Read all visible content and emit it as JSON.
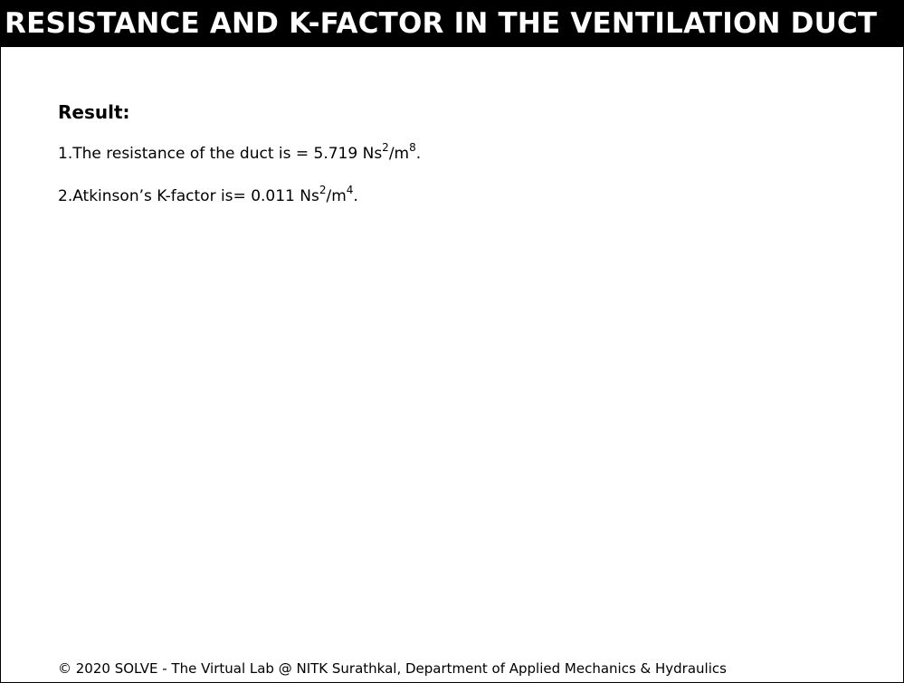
{
  "header": {
    "title": "RESISTANCE AND K-FACTOR IN THE VENTILATION DUCT"
  },
  "result": {
    "heading": "Result:",
    "line1": {
      "prefix": "1.The resistance of the duct is = 5.719 Ns",
      "exp1": "2",
      "mid": "/m",
      "exp2": "8",
      "suffix": "."
    },
    "line2": {
      "prefix": "2.Atkinson’s K-factor is= 0.011 Ns",
      "exp1": "2",
      "mid": "/m",
      "exp2": "4",
      "suffix": "."
    }
  },
  "footer": {
    "text": "© 2020 SOLVE - The Virtual Lab @ NITK Surathkal, Department of Applied Mechanics & Hydraulics"
  }
}
